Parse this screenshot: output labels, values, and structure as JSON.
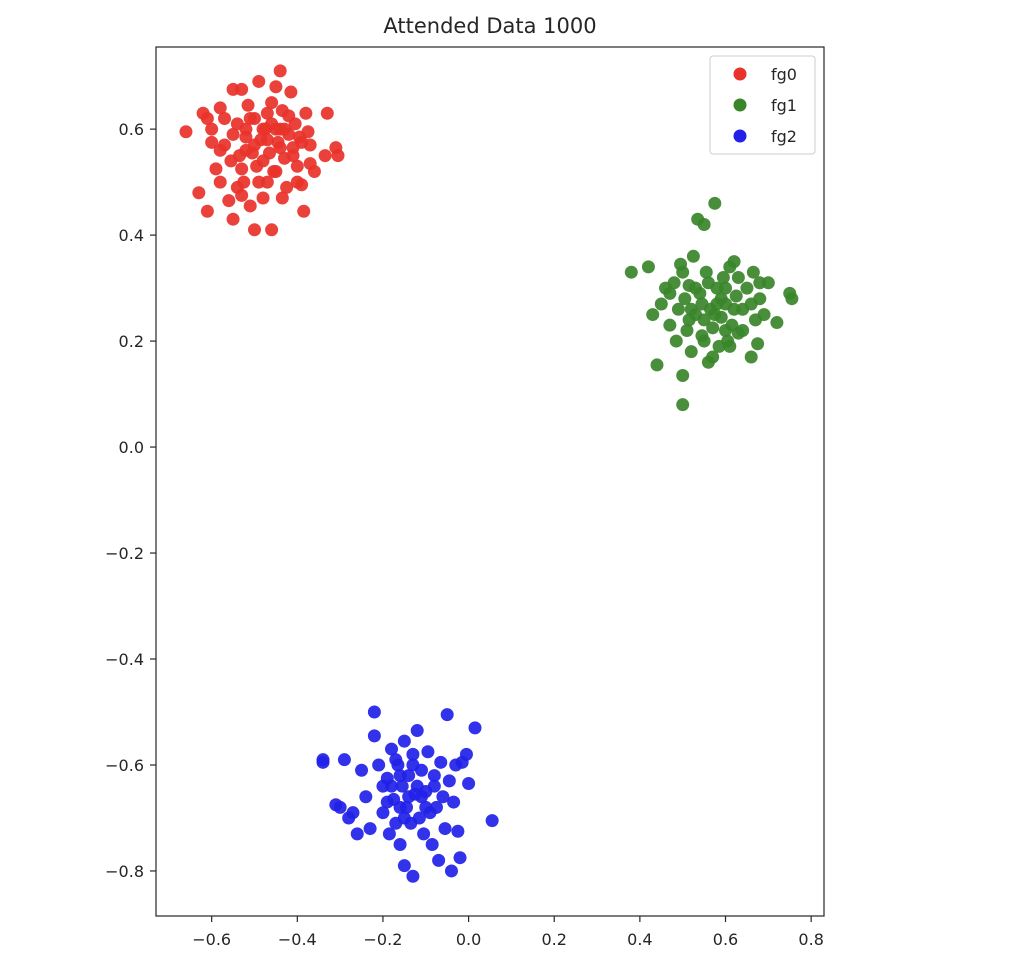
{
  "chart_data": {
    "type": "scatter",
    "title": "Attended Data 1000",
    "xlabel": "",
    "ylabel": "",
    "xlim": [
      -0.73,
      0.83
    ],
    "ylim": [
      -0.885,
      0.755
    ],
    "x_ticks": [
      -0.6,
      -0.4,
      -0.2,
      0.0,
      0.2,
      0.4,
      0.6,
      0.8
    ],
    "x_tick_labels": [
      "−0.6",
      "−0.4",
      "−0.2",
      "0.0",
      "0.2",
      "0.4",
      "0.6",
      "0.8"
    ],
    "y_ticks": [
      -0.8,
      -0.6,
      -0.4,
      -0.2,
      0.0,
      0.2,
      0.4,
      0.6
    ],
    "y_tick_labels": [
      "−0.8",
      "−0.6",
      "−0.4",
      "−0.2",
      "0.0",
      "0.2",
      "0.4",
      "0.6"
    ],
    "grid": false,
    "legend_position": "top-right",
    "series": [
      {
        "name": "fg0",
        "color": "#e8322a",
        "points": [
          [
            -0.66,
            0.595
          ],
          [
            -0.63,
            0.48
          ],
          [
            -0.61,
            0.445
          ],
          [
            -0.61,
            0.62
          ],
          [
            -0.6,
            0.575
          ],
          [
            -0.59,
            0.525
          ],
          [
            -0.58,
            0.5
          ],
          [
            -0.57,
            0.57
          ],
          [
            -0.56,
            0.465
          ],
          [
            -0.555,
            0.54
          ],
          [
            -0.55,
            0.675
          ],
          [
            -0.55,
            0.43
          ],
          [
            -0.54,
            0.61
          ],
          [
            -0.535,
            0.55
          ],
          [
            -0.53,
            0.675
          ],
          [
            -0.53,
            0.475
          ],
          [
            -0.525,
            0.5
          ],
          [
            -0.52,
            0.585
          ],
          [
            -0.515,
            0.645
          ],
          [
            -0.51,
            0.455
          ],
          [
            -0.505,
            0.555
          ],
          [
            -0.5,
            0.62
          ],
          [
            -0.5,
            0.41
          ],
          [
            -0.495,
            0.53
          ],
          [
            -0.49,
            0.69
          ],
          [
            -0.485,
            0.58
          ],
          [
            -0.48,
            0.47
          ],
          [
            -0.475,
            0.6
          ],
          [
            -0.47,
            0.63
          ],
          [
            -0.465,
            0.555
          ],
          [
            -0.46,
            0.41
          ],
          [
            -0.455,
            0.52
          ],
          [
            -0.45,
            0.68
          ],
          [
            -0.45,
            0.6
          ],
          [
            -0.445,
            0.575
          ],
          [
            -0.44,
            0.71
          ],
          [
            -0.435,
            0.635
          ],
          [
            -0.43,
            0.545
          ],
          [
            -0.425,
            0.49
          ],
          [
            -0.42,
            0.59
          ],
          [
            -0.415,
            0.67
          ],
          [
            -0.41,
            0.565
          ],
          [
            -0.405,
            0.61
          ],
          [
            -0.4,
            0.53
          ],
          [
            -0.395,
            0.585
          ],
          [
            -0.39,
            0.495
          ],
          [
            -0.385,
            0.445
          ],
          [
            -0.38,
            0.63
          ],
          [
            -0.375,
            0.595
          ],
          [
            -0.37,
            0.57
          ],
          [
            -0.36,
            0.52
          ],
          [
            -0.335,
            0.55
          ],
          [
            -0.33,
            0.63
          ],
          [
            -0.31,
            0.565
          ],
          [
            -0.305,
            0.55
          ],
          [
            -0.57,
            0.62
          ],
          [
            -0.52,
            0.56
          ],
          [
            -0.48,
            0.54
          ],
          [
            -0.46,
            0.61
          ],
          [
            -0.43,
            0.6
          ],
          [
            -0.41,
            0.55
          ],
          [
            -0.55,
            0.59
          ],
          [
            -0.5,
            0.57
          ],
          [
            -0.47,
            0.58
          ],
          [
            -0.44,
            0.565
          ],
          [
            -0.42,
            0.625
          ],
          [
            -0.39,
            0.575
          ],
          [
            -0.6,
            0.6
          ],
          [
            -0.58,
            0.64
          ],
          [
            -0.53,
            0.525
          ],
          [
            -0.49,
            0.5
          ],
          [
            -0.45,
            0.52
          ],
          [
            -0.4,
            0.5
          ],
          [
            -0.37,
            0.535
          ],
          [
            -0.51,
            0.62
          ],
          [
            -0.46,
            0.65
          ],
          [
            -0.54,
            0.49
          ],
          [
            -0.47,
            0.5
          ],
          [
            -0.435,
            0.47
          ],
          [
            -0.62,
            0.63
          ],
          [
            -0.58,
            0.56
          ],
          [
            -0.44,
            0.6
          ],
          [
            -0.48,
            0.6
          ],
          [
            -0.52,
            0.6
          ]
        ]
      },
      {
        "name": "fg1",
        "color": "#3a862a",
        "points": [
          [
            0.38,
            0.33
          ],
          [
            0.42,
            0.34
          ],
          [
            0.43,
            0.25
          ],
          [
            0.44,
            0.155
          ],
          [
            0.45,
            0.27
          ],
          [
            0.46,
            0.3
          ],
          [
            0.47,
            0.23
          ],
          [
            0.48,
            0.31
          ],
          [
            0.485,
            0.2
          ],
          [
            0.49,
            0.26
          ],
          [
            0.495,
            0.345
          ],
          [
            0.5,
            0.135
          ],
          [
            0.5,
            0.08
          ],
          [
            0.505,
            0.28
          ],
          [
            0.51,
            0.22
          ],
          [
            0.515,
            0.305
          ],
          [
            0.52,
            0.18
          ],
          [
            0.525,
            0.36
          ],
          [
            0.53,
            0.25
          ],
          [
            0.535,
            0.43
          ],
          [
            0.54,
            0.29
          ],
          [
            0.545,
            0.21
          ],
          [
            0.55,
            0.42
          ],
          [
            0.555,
            0.33
          ],
          [
            0.56,
            0.16
          ],
          [
            0.565,
            0.26
          ],
          [
            0.57,
            0.225
          ],
          [
            0.575,
            0.46
          ],
          [
            0.58,
            0.3
          ],
          [
            0.585,
            0.19
          ],
          [
            0.59,
            0.245
          ],
          [
            0.595,
            0.32
          ],
          [
            0.6,
            0.27
          ],
          [
            0.605,
            0.2
          ],
          [
            0.61,
            0.34
          ],
          [
            0.615,
            0.23
          ],
          [
            0.62,
            0.35
          ],
          [
            0.625,
            0.285
          ],
          [
            0.63,
            0.215
          ],
          [
            0.64,
            0.26
          ],
          [
            0.65,
            0.3
          ],
          [
            0.66,
            0.17
          ],
          [
            0.665,
            0.33
          ],
          [
            0.67,
            0.24
          ],
          [
            0.675,
            0.195
          ],
          [
            0.68,
            0.28
          ],
          [
            0.69,
            0.25
          ],
          [
            0.7,
            0.31
          ],
          [
            0.72,
            0.235
          ],
          [
            0.75,
            0.29
          ],
          [
            0.755,
            0.28
          ],
          [
            0.545,
            0.27
          ],
          [
            0.56,
            0.31
          ],
          [
            0.575,
            0.25
          ],
          [
            0.59,
            0.28
          ],
          [
            0.6,
            0.22
          ],
          [
            0.53,
            0.3
          ],
          [
            0.515,
            0.24
          ],
          [
            0.57,
            0.17
          ],
          [
            0.62,
            0.26
          ],
          [
            0.64,
            0.22
          ],
          [
            0.6,
            0.3
          ],
          [
            0.55,
            0.24
          ],
          [
            0.58,
            0.27
          ],
          [
            0.5,
            0.33
          ],
          [
            0.47,
            0.29
          ],
          [
            0.68,
            0.31
          ],
          [
            0.66,
            0.27
          ],
          [
            0.63,
            0.32
          ],
          [
            0.55,
            0.2
          ],
          [
            0.52,
            0.26
          ],
          [
            0.61,
            0.19
          ]
        ]
      },
      {
        "name": "fg2",
        "color": "#2121e8",
        "points": [
          [
            -0.34,
            -0.59
          ],
          [
            -0.34,
            -0.595
          ],
          [
            -0.31,
            -0.675
          ],
          [
            -0.3,
            -0.68
          ],
          [
            -0.29,
            -0.59
          ],
          [
            -0.28,
            -0.7
          ],
          [
            -0.27,
            -0.69
          ],
          [
            -0.26,
            -0.73
          ],
          [
            -0.25,
            -0.61
          ],
          [
            -0.24,
            -0.66
          ],
          [
            -0.23,
            -0.72
          ],
          [
            -0.22,
            -0.5
          ],
          [
            -0.22,
            -0.545
          ],
          [
            -0.21,
            -0.6
          ],
          [
            -0.2,
            -0.64
          ],
          [
            -0.2,
            -0.69
          ],
          [
            -0.19,
            -0.625
          ],
          [
            -0.185,
            -0.73
          ],
          [
            -0.18,
            -0.57
          ],
          [
            -0.175,
            -0.665
          ],
          [
            -0.17,
            -0.71
          ],
          [
            -0.165,
            -0.6
          ],
          [
            -0.16,
            -0.75
          ],
          [
            -0.155,
            -0.64
          ],
          [
            -0.15,
            -0.555
          ],
          [
            -0.15,
            -0.79
          ],
          [
            -0.145,
            -0.68
          ],
          [
            -0.14,
            -0.62
          ],
          [
            -0.135,
            -0.71
          ],
          [
            -0.13,
            -0.6
          ],
          [
            -0.13,
            -0.81
          ],
          [
            -0.125,
            -0.655
          ],
          [
            -0.12,
            -0.535
          ],
          [
            -0.115,
            -0.7
          ],
          [
            -0.11,
            -0.61
          ],
          [
            -0.105,
            -0.73
          ],
          [
            -0.1,
            -0.65
          ],
          [
            -0.095,
            -0.575
          ],
          [
            -0.09,
            -0.69
          ],
          [
            -0.085,
            -0.75
          ],
          [
            -0.08,
            -0.62
          ],
          [
            -0.075,
            -0.68
          ],
          [
            -0.07,
            -0.78
          ],
          [
            -0.065,
            -0.595
          ],
          [
            -0.06,
            -0.66
          ],
          [
            -0.055,
            -0.72
          ],
          [
            -0.05,
            -0.505
          ],
          [
            -0.045,
            -0.63
          ],
          [
            -0.04,
            -0.8
          ],
          [
            -0.035,
            -0.67
          ],
          [
            -0.03,
            -0.6
          ],
          [
            -0.025,
            -0.725
          ],
          [
            -0.02,
            -0.775
          ],
          [
            -0.015,
            -0.595
          ],
          [
            -0.005,
            -0.58
          ],
          [
            0.0,
            -0.635
          ],
          [
            0.015,
            -0.53
          ],
          [
            0.055,
            -0.705
          ],
          [
            -0.18,
            -0.64
          ],
          [
            -0.16,
            -0.62
          ],
          [
            -0.14,
            -0.66
          ],
          [
            -0.12,
            -0.64
          ],
          [
            -0.1,
            -0.68
          ],
          [
            -0.16,
            -0.68
          ],
          [
            -0.13,
            -0.58
          ],
          [
            -0.11,
            -0.66
          ],
          [
            -0.19,
            -0.67
          ],
          [
            -0.17,
            -0.59
          ],
          [
            -0.08,
            -0.64
          ],
          [
            -0.15,
            -0.7
          ]
        ]
      }
    ]
  }
}
